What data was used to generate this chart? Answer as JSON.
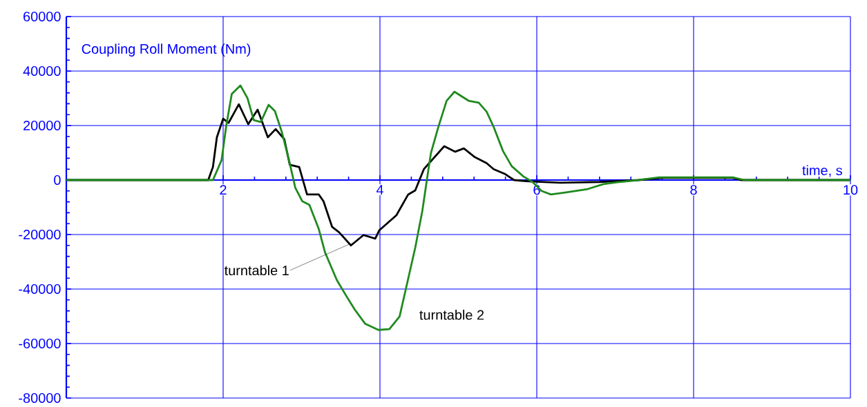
{
  "chart_data": {
    "type": "line",
    "ylabel": "Coupling Roll Moment (Nm)",
    "xlabel": "time, s",
    "xlim": [
      0,
      10
    ],
    "ylim": [
      -80000,
      60000
    ],
    "xticks": [
      2,
      4,
      6,
      8,
      10
    ],
    "yticks": [
      -80000,
      -60000,
      -40000,
      -20000,
      0,
      20000,
      40000,
      60000
    ],
    "grid": true,
    "marker": "none",
    "line_style": "solid",
    "series": [
      {
        "name": "turntable 1",
        "color": "#000000",
        "x": [
          0,
          1.81,
          1.87,
          1.92,
          2.0,
          2.07,
          2.2,
          2.32,
          2.44,
          2.57,
          2.67,
          2.78,
          2.85,
          2.97,
          3.07,
          3.22,
          3.28,
          3.39,
          3.48,
          3.63,
          3.79,
          3.94,
          3.99,
          4.21,
          4.36,
          4.45,
          4.56,
          4.82,
          4.96,
          5.07,
          5.21,
          5.36,
          5.45,
          5.59,
          5.71,
          5.9,
          6.3,
          6.8,
          7.1,
          7.3,
          7.6,
          8.5,
          8.6,
          10
        ],
        "values": [
          0,
          0,
          4800,
          15700,
          22500,
          21000,
          27800,
          20500,
          25800,
          15700,
          18700,
          15000,
          5600,
          4800,
          -5300,
          -5300,
          -7800,
          -17200,
          -19200,
          -24000,
          -20200,
          -21500,
          -18500,
          -12900,
          -5300,
          -3800,
          4000,
          12400,
          10400,
          11600,
          8400,
          6200,
          4000,
          2300,
          0,
          -500,
          -1000,
          -700,
          -300,
          0,
          800,
          800,
          0,
          0
        ]
      },
      {
        "name": "turntable 2",
        "color": "#1f8a1f",
        "x": [
          0,
          1.87,
          1.98,
          2.04,
          2.11,
          2.22,
          2.31,
          2.39,
          2.48,
          2.58,
          2.66,
          2.75,
          2.84,
          2.92,
          3.01,
          3.1,
          3.22,
          3.3,
          3.45,
          3.57,
          3.68,
          3.81,
          3.98,
          4.12,
          4.25,
          4.33,
          4.45,
          4.54,
          4.61,
          4.65,
          4.74,
          4.85,
          4.95,
          5.13,
          5.26,
          5.36,
          5.45,
          5.57,
          5.68,
          5.83,
          5.95,
          6.06,
          6.18,
          6.36,
          6.65,
          6.85,
          7.03,
          7.3,
          7.56,
          8.5,
          8.65,
          10
        ],
        "values": [
          0,
          0,
          7300,
          20000,
          31600,
          34700,
          30100,
          22000,
          21300,
          27600,
          25300,
          17500,
          7300,
          -2800,
          -7800,
          -9100,
          -18000,
          -26600,
          -36700,
          -42500,
          -47600,
          -52700,
          -55000,
          -54700,
          -50100,
          -40000,
          -24800,
          -11400,
          2300,
          9900,
          19000,
          29100,
          32400,
          29100,
          28400,
          25100,
          19500,
          10600,
          5100,
          1300,
          -800,
          -4000,
          -5300,
          -4600,
          -3300,
          -1500,
          -800,
          0,
          1000,
          1000,
          0,
          0
        ]
      }
    ]
  }
}
